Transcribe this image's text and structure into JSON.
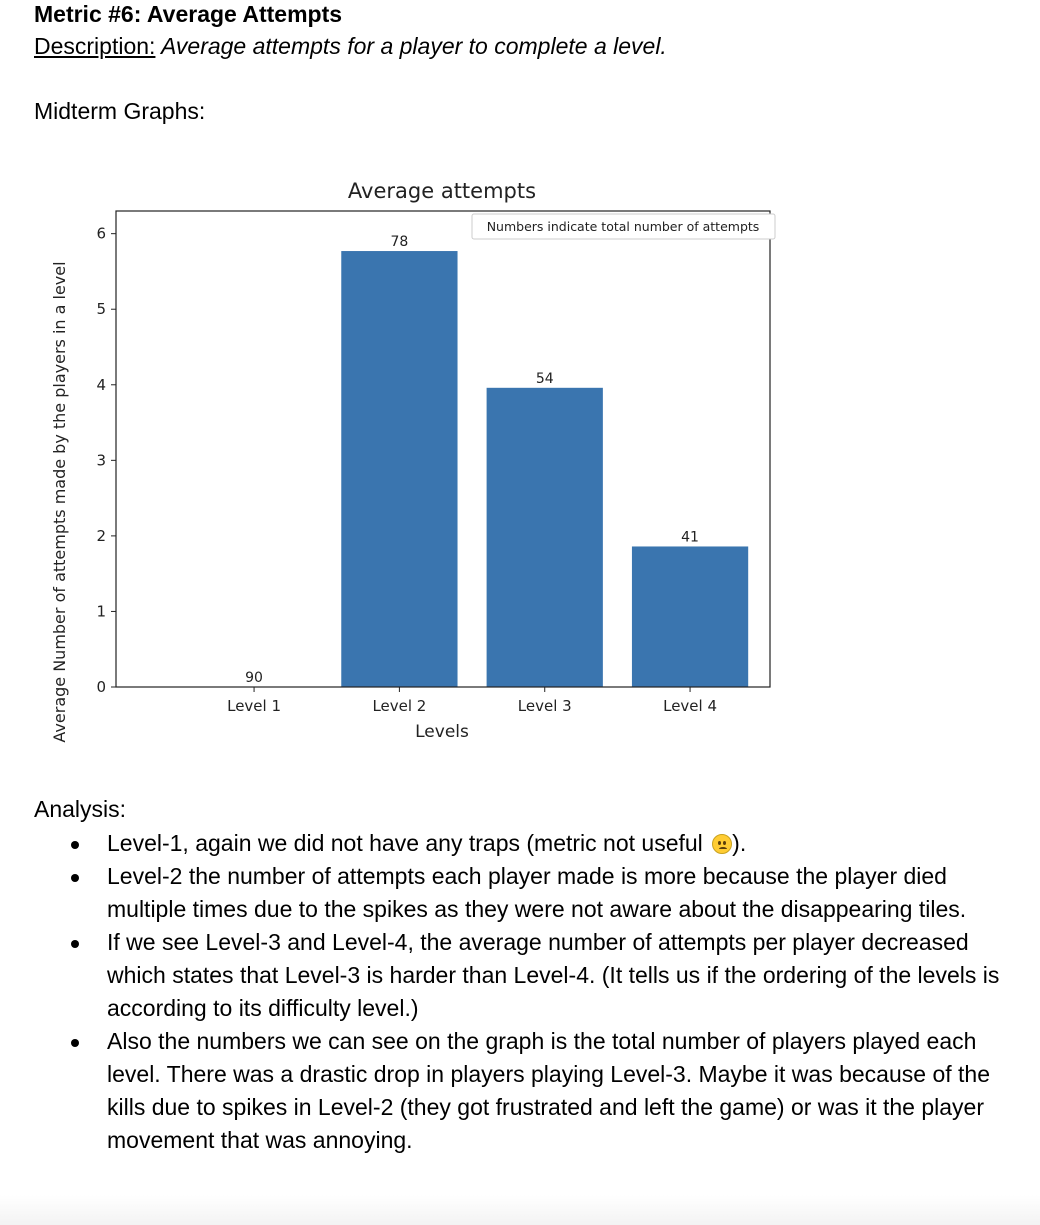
{
  "doc": {
    "title": "Metric #6: Average Attempts",
    "description_label": "Description:",
    "description_text": " Average attempts for a player to complete a level.",
    "midterm_label": "Midterm Graphs:"
  },
  "chart_data": {
    "type": "bar",
    "title": "Average attempts",
    "xlabel": "Levels",
    "ylabel": "Average Number of attempts made by the players in a level",
    "categories": [
      "Level 1",
      "Level 2",
      "Level 3",
      "Level 4"
    ],
    "values": [
      0,
      5.77,
      3.96,
      1.86
    ],
    "bar_labels": [
      "90",
      "78",
      "54",
      "41"
    ],
    "legend_text": "Numbers indicate total number of attempts",
    "legend_position": "top-right",
    "ylim": [
      0,
      6.3
    ],
    "yticks": [
      0,
      1,
      2,
      3,
      4,
      5,
      6
    ],
    "bar_color": "#3a75af",
    "grid": false
  },
  "analysis": {
    "heading": "Analysis:",
    "bullets": [
      "Level-1, again we did not have any traps (metric not useful ",
      "Level-2 the number of attempts each player made is more because the player died multiple times due to the spikes as they were not aware about the disappearing tiles.",
      "If we see Level-3 and Level-4, the average number of attempts per player decreased which states that Level-3 is harder than Level-4. (It tells us if the ordering of the levels is according to its difficulty level.)",
      "Also the numbers we can see on the graph is the total number of players played each level. There was a drastic drop in players playing Level-3. Maybe it was because of the kills due to spikes in Level-2 (they got frustrated and left the game) or was it the player movement that was annoying."
    ],
    "bullet1_suffix": ")."
  }
}
